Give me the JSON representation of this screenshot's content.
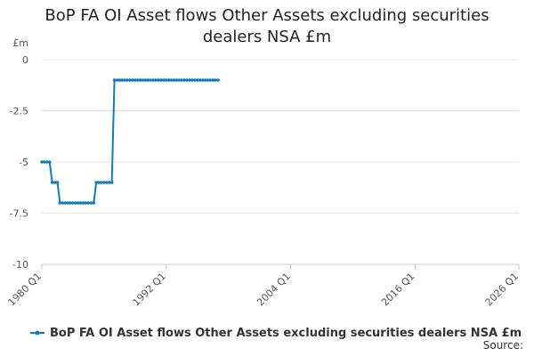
{
  "chart_data": {
    "type": "line",
    "title": "BoP FA OI Asset flows Other Assets excluding securities dealers NSA £m",
    "y_label": "£m",
    "source": "Source:",
    "x": [
      "1980 Q1",
      "1980 Q2",
      "1980 Q3",
      "1980 Q4",
      "1981 Q1",
      "1981 Q2",
      "1981 Q3",
      "1981 Q4",
      "1982 Q1",
      "1982 Q2",
      "1982 Q3",
      "1982 Q4",
      "1983 Q1",
      "1983 Q2",
      "1983 Q3",
      "1983 Q4",
      "1984 Q1",
      "1984 Q2",
      "1984 Q3",
      "1984 Q4",
      "1985 Q1",
      "1985 Q2",
      "1985 Q3",
      "1985 Q4",
      "1986 Q1",
      "1986 Q2",
      "1986 Q3",
      "1986 Q4",
      "1987 Q1",
      "1987 Q2",
      "1987 Q3",
      "1987 Q4",
      "1988 Q1",
      "1988 Q2",
      "1988 Q3",
      "1988 Q4",
      "1989 Q1",
      "1989 Q2",
      "1989 Q3",
      "1989 Q4",
      "1990 Q1",
      "1990 Q2",
      "1990 Q3",
      "1990 Q4",
      "1991 Q1",
      "1991 Q2",
      "1991 Q3",
      "1991 Q4",
      "1992 Q1",
      "1992 Q2",
      "1992 Q3",
      "1992 Q4",
      "1993 Q1",
      "1993 Q2",
      "1993 Q3",
      "1993 Q4",
      "1994 Q1",
      "1994 Q2",
      "1994 Q3",
      "1994 Q4",
      "1995 Q1",
      "1995 Q2",
      "1995 Q3",
      "1995 Q4",
      "1996 Q1",
      "1996 Q2",
      "1996 Q3",
      "1996 Q4",
      "1997 Q1"
    ],
    "series": [
      {
        "name": "BoP FA OI Asset flows Other Assets excluding securities dealers NSA £m",
        "color": "#0f7cbf",
        "values": [
          -5,
          -5,
          -5,
          -5,
          -6,
          -6,
          -6,
          -7,
          -7,
          -7,
          -7,
          -7,
          -7,
          -7,
          -7,
          -7,
          -7,
          -7,
          -7,
          -7,
          -7,
          -6,
          -6,
          -6,
          -6,
          -6,
          -6,
          -6,
          -1,
          -1,
          -1,
          -1,
          -1,
          -1,
          -1,
          -1,
          -1,
          -1,
          -1,
          -1,
          -1,
          -1,
          -1,
          -1,
          -1,
          -1,
          -1,
          -1,
          -1,
          -1,
          -1,
          -1,
          -1,
          -1,
          -1,
          -1,
          -1,
          -1,
          -1,
          -1,
          -1,
          -1,
          -1,
          -1,
          -1,
          -1,
          -1,
          -1,
          -1
        ]
      }
    ],
    "xlim": [
      "1980 Q1",
      "2026 Q1"
    ],
    "xticks": [
      "1980 Q1",
      "1992 Q1",
      "2004 Q1",
      "2016 Q1",
      "2026 Q1"
    ],
    "ylim": [
      -10,
      0
    ],
    "yticks": [
      0,
      -2.5,
      -5,
      -7.5,
      -10
    ],
    "grid": true
  }
}
